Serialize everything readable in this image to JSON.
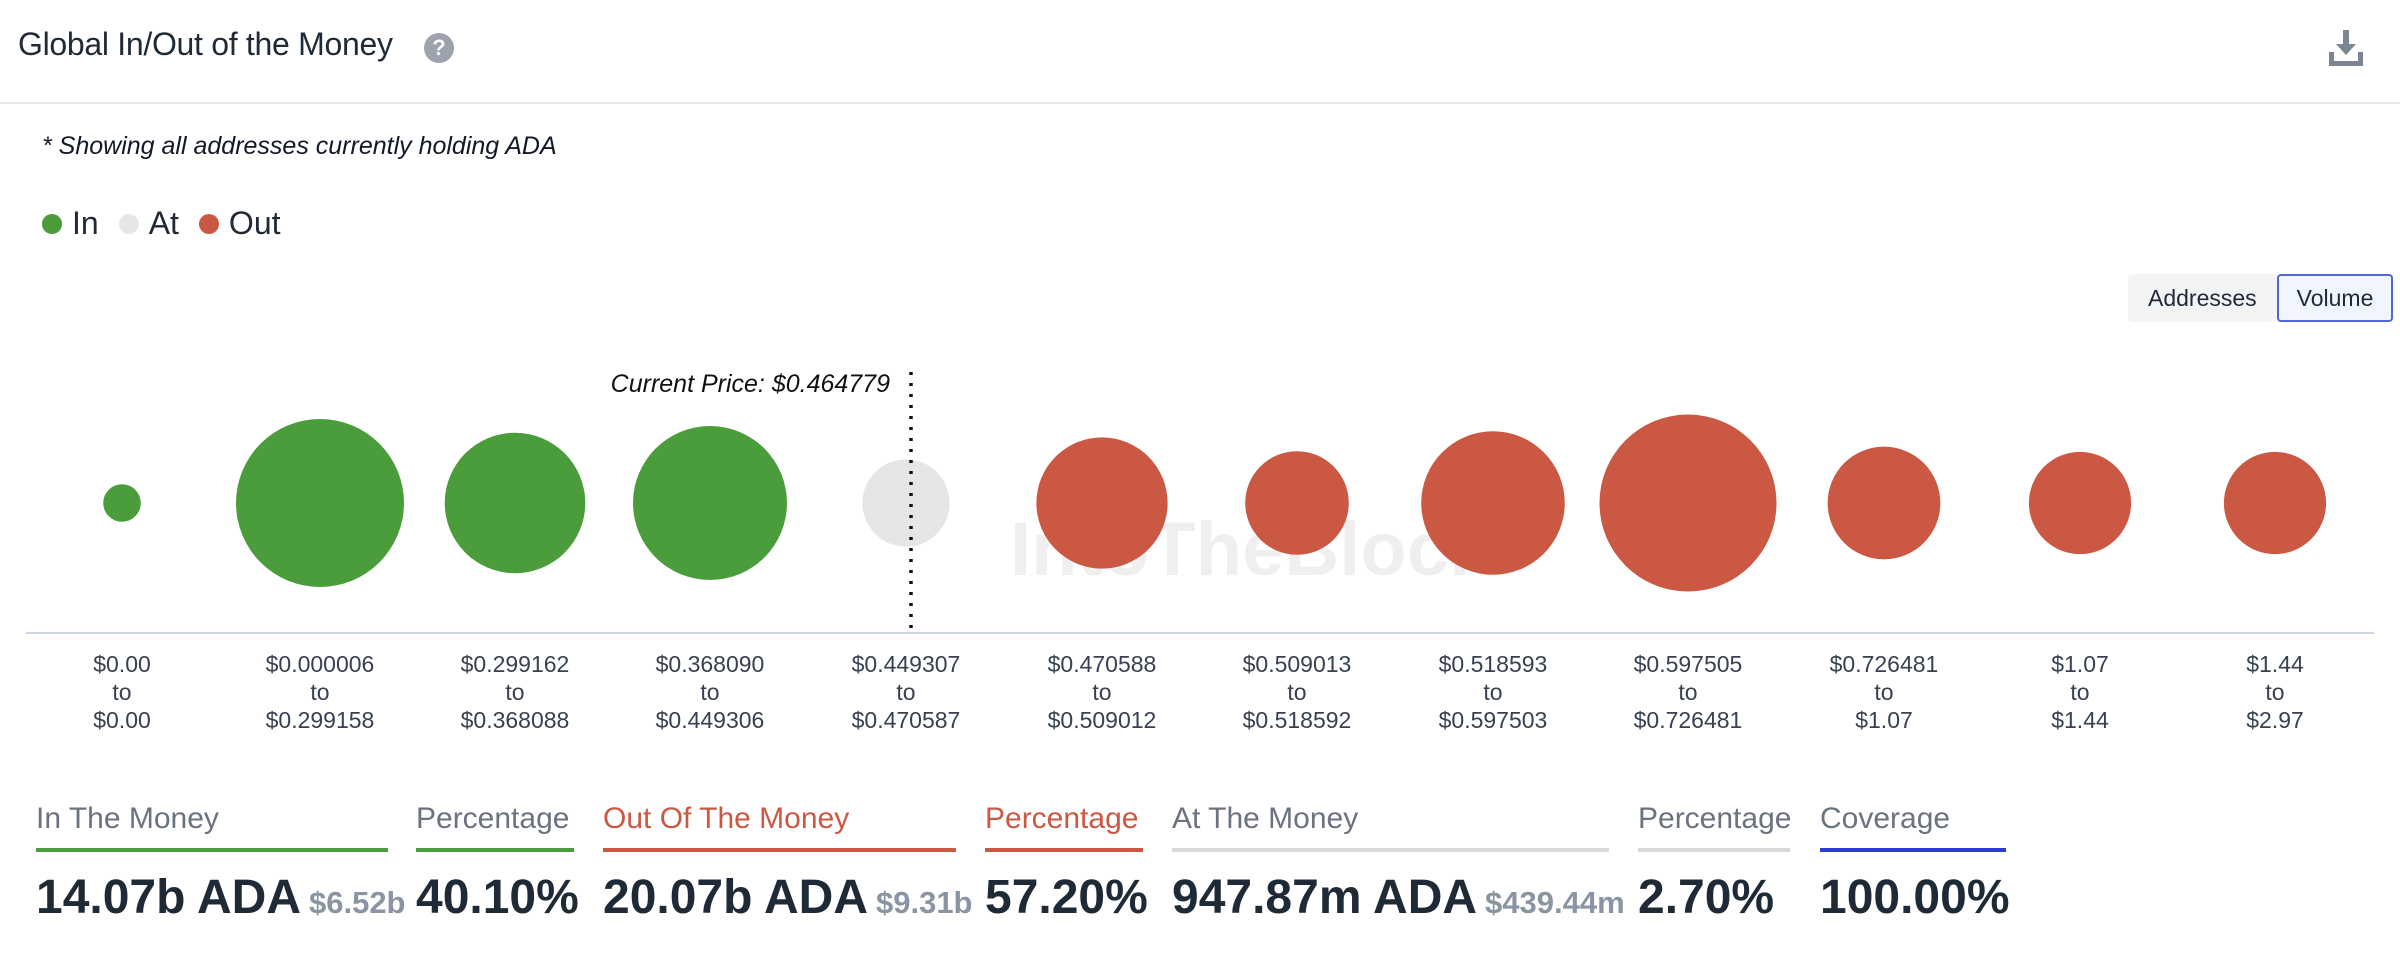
{
  "header": {
    "title": "Global In/Out of the Money",
    "help_icon": "question-circle-icon",
    "download_icon": "download-icon"
  },
  "note": "* Showing all addresses currently holding ADA",
  "legend": [
    {
      "label": "In",
      "color": "#4a9d3a"
    },
    {
      "label": "At",
      "color": "#e6e6e6"
    },
    {
      "label": "Out",
      "color": "#cb5843"
    }
  ],
  "toggle": {
    "options": [
      "Addresses",
      "Volume"
    ],
    "selected": "Volume"
  },
  "chart_data": {
    "type": "bubble",
    "current_price_label": "Current Price: $0.464779",
    "watermark": "IntoTheBlock",
    "ranges": [
      {
        "from": "$0.00",
        "to": "$0.00",
        "status": "In"
      },
      {
        "from": "$0.000006",
        "to": "$0.299158",
        "status": "In"
      },
      {
        "from": "$0.299162",
        "to": "$0.368088",
        "status": "In"
      },
      {
        "from": "$0.368090",
        "to": "$0.449306",
        "status": "In"
      },
      {
        "from": "$0.449307",
        "to": "$0.470587",
        "status": "At"
      },
      {
        "from": "$0.470588",
        "to": "$0.509012",
        "status": "Out"
      },
      {
        "from": "$0.509013",
        "to": "$0.518592",
        "status": "Out"
      },
      {
        "from": "$0.518593",
        "to": "$0.597503",
        "status": "Out"
      },
      {
        "from": "$0.597505",
        "to": "$0.726481",
        "status": "Out"
      },
      {
        "from": "$0.726481",
        "to": "$1.07",
        "status": "Out"
      },
      {
        "from": "$1.07",
        "to": "$1.44",
        "status": "Out"
      },
      {
        "from": "$1.44",
        "to": "$2.97",
        "status": "Out"
      }
    ],
    "relative_volume": [
      0.05,
      1.0,
      0.7,
      0.84,
      0.27,
      0.61,
      0.38,
      0.73,
      1.11,
      0.45,
      0.37,
      0.37
    ],
    "colors": {
      "In": "#4a9d3a",
      "At": "#e6e6e6",
      "Out": "#cb5843"
    },
    "range_connector": "to"
  },
  "stats": [
    {
      "label": "In The Money",
      "value": "14.07b ADA",
      "sub": "$6.52b",
      "color": "#4a9d3a"
    },
    {
      "label": "Percentage",
      "value": "40.10%",
      "sub": "",
      "color": "#4a9d3a"
    },
    {
      "label": "Out Of The Money",
      "value": "20.07b ADA",
      "sub": "$9.31b",
      "color": "#cb5843"
    },
    {
      "label": "Percentage",
      "value": "57.20%",
      "sub": "",
      "color": "#cb5843"
    },
    {
      "label": "At The Money",
      "value": "947.87m ADA",
      "sub": "$439.44m",
      "color": "#d9d9d9"
    },
    {
      "label": "Percentage",
      "value": "2.70%",
      "sub": "",
      "color": "#d9d9d9"
    },
    {
      "label": "Coverage",
      "value": "100.00%",
      "sub": "",
      "color": "#2b3ad6"
    }
  ]
}
